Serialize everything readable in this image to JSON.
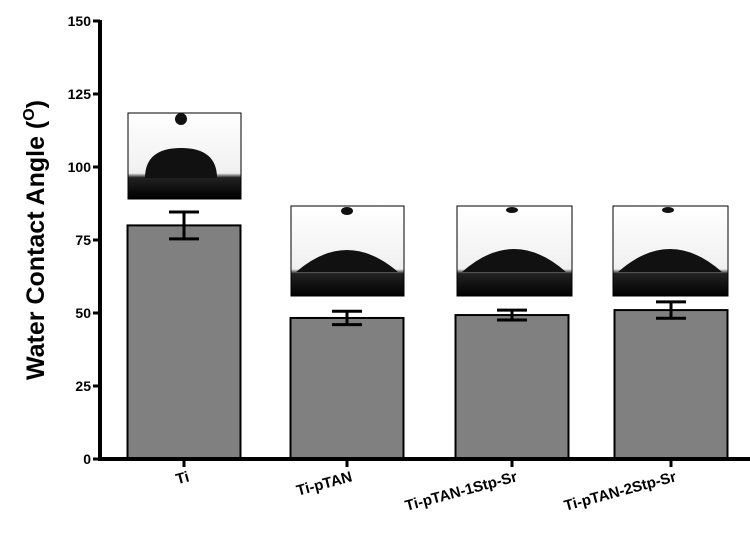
{
  "chart_data": {
    "type": "bar",
    "y_label_parts": [
      "Water Contact Angle (",
      "O",
      ")"
    ],
    "categories": [
      "Ti",
      "Ti-pTAN",
      "Ti-pTAN-1Stp-Sr",
      "Ti-pTAN-2Stp-Sr"
    ],
    "values": [
      80,
      48.3,
      49.3,
      51
    ],
    "errors": [
      4.6,
      2.3,
      1.7,
      2.8
    ],
    "color": "#808080",
    "ylim": [
      0,
      150
    ],
    "yticks": [
      0,
      25,
      50,
      75,
      100,
      125,
      150
    ]
  }
}
